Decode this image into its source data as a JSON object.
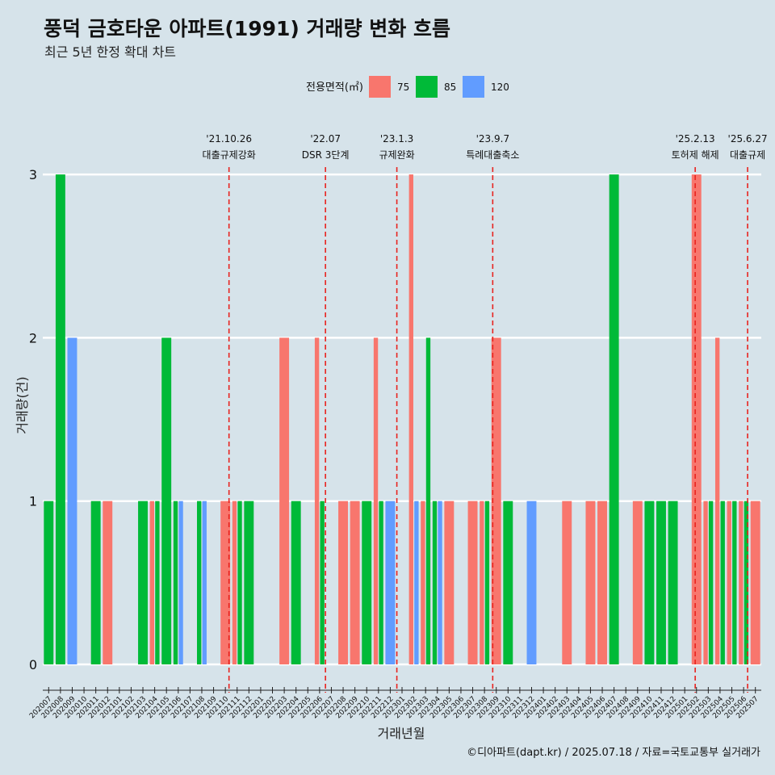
{
  "page": {
    "title": "풍덕 금호타운 아파트(1991) 거래량 변화 흐름",
    "subtitle": "최근 5년 한정 확대 차트",
    "caption": "©디아파트(dapt.kr) / 2025.07.18 / 자료=국토교통부 실거래가",
    "legend_title": "전용면적(㎡)"
  },
  "chart_data": {
    "type": "bar",
    "xlabel": "거래년월",
    "ylabel": "거래량(건)",
    "ylim": [
      0,
      3
    ],
    "yticks": [
      0,
      1,
      2,
      3
    ],
    "grid": "horizontal",
    "legend_position": "top",
    "categories": [
      "202007",
      "202008",
      "202009",
      "202010",
      "202011",
      "202012",
      "202101",
      "202102",
      "202103",
      "202104",
      "202105",
      "202106",
      "202107",
      "202108",
      "202109",
      "202110",
      "202111",
      "202112",
      "202201",
      "202202",
      "202203",
      "202204",
      "202205",
      "202206",
      "202207",
      "202208",
      "202209",
      "202210",
      "202211",
      "202212",
      "202301",
      "202302",
      "202303",
      "202304",
      "202305",
      "202306",
      "202307",
      "202308",
      "202309",
      "202310",
      "202311",
      "202312",
      "202401",
      "202402",
      "202403",
      "202404",
      "202405",
      "202406",
      "202407",
      "202408",
      "202409",
      "202410",
      "202411",
      "202412",
      "202501",
      "202502",
      "202503",
      "202504",
      "202505",
      "202506",
      "202507"
    ],
    "series": [
      {
        "name": "75",
        "color": "#f8766d",
        "values": [
          0,
          0,
          0,
          0,
          0,
          1,
          0,
          0,
          0,
          1,
          0,
          0,
          0,
          0,
          0,
          1,
          1,
          0,
          0,
          0,
          2,
          0,
          0,
          2,
          0,
          1,
          1,
          0,
          2,
          0,
          0,
          3,
          1,
          0,
          1,
          0,
          1,
          1,
          2,
          0,
          0,
          0,
          0,
          0,
          1,
          0,
          1,
          1,
          0,
          0,
          1,
          0,
          0,
          0,
          0,
          3,
          1,
          2,
          1,
          1,
          1
        ]
      },
      {
        "name": "85",
        "color": "#00ba38",
        "values": [
          1,
          3,
          0,
          0,
          1,
          0,
          0,
          0,
          1,
          1,
          2,
          1,
          0,
          1,
          0,
          0,
          1,
          1,
          0,
          0,
          0,
          1,
          0,
          1,
          0,
          0,
          0,
          1,
          1,
          0,
          0,
          0,
          2,
          1,
          0,
          0,
          0,
          1,
          0,
          1,
          0,
          0,
          0,
          0,
          0,
          0,
          0,
          0,
          3,
          0,
          0,
          1,
          1,
          1,
          0,
          0,
          1,
          1,
          1,
          1,
          0
        ]
      },
      {
        "name": "120",
        "color": "#619cff",
        "values": [
          0,
          0,
          2,
          0,
          0,
          0,
          0,
          0,
          0,
          0,
          0,
          1,
          0,
          1,
          0,
          0,
          0,
          0,
          0,
          0,
          0,
          0,
          0,
          0,
          0,
          0,
          0,
          0,
          0,
          1,
          0,
          1,
          0,
          1,
          0,
          0,
          0,
          0,
          0,
          0,
          0,
          1,
          0,
          0,
          0,
          0,
          0,
          0,
          0,
          0,
          0,
          0,
          0,
          0,
          0,
          0,
          0,
          0,
          0,
          0,
          0
        ]
      }
    ],
    "events": [
      {
        "date": "'21.10.26",
        "label": "대출규제강화",
        "month": "202110",
        "frac": 0.81
      },
      {
        "date": "'22.07",
        "label": "DSR 3단계",
        "month": "202207",
        "frac": 0.0
      },
      {
        "date": "'23.1.3",
        "label": "규제완화",
        "month": "202301",
        "frac": 0.06
      },
      {
        "date": "'23.9.7",
        "label": "특례대출축소",
        "month": "202309",
        "frac": 0.2
      },
      {
        "date": "'25.2.13",
        "label": "토허제 해제",
        "month": "202502",
        "frac": 0.39
      },
      {
        "date": "'25.6.27",
        "label": "대출규제",
        "month": "202506",
        "frac": 0.84
      }
    ]
  }
}
